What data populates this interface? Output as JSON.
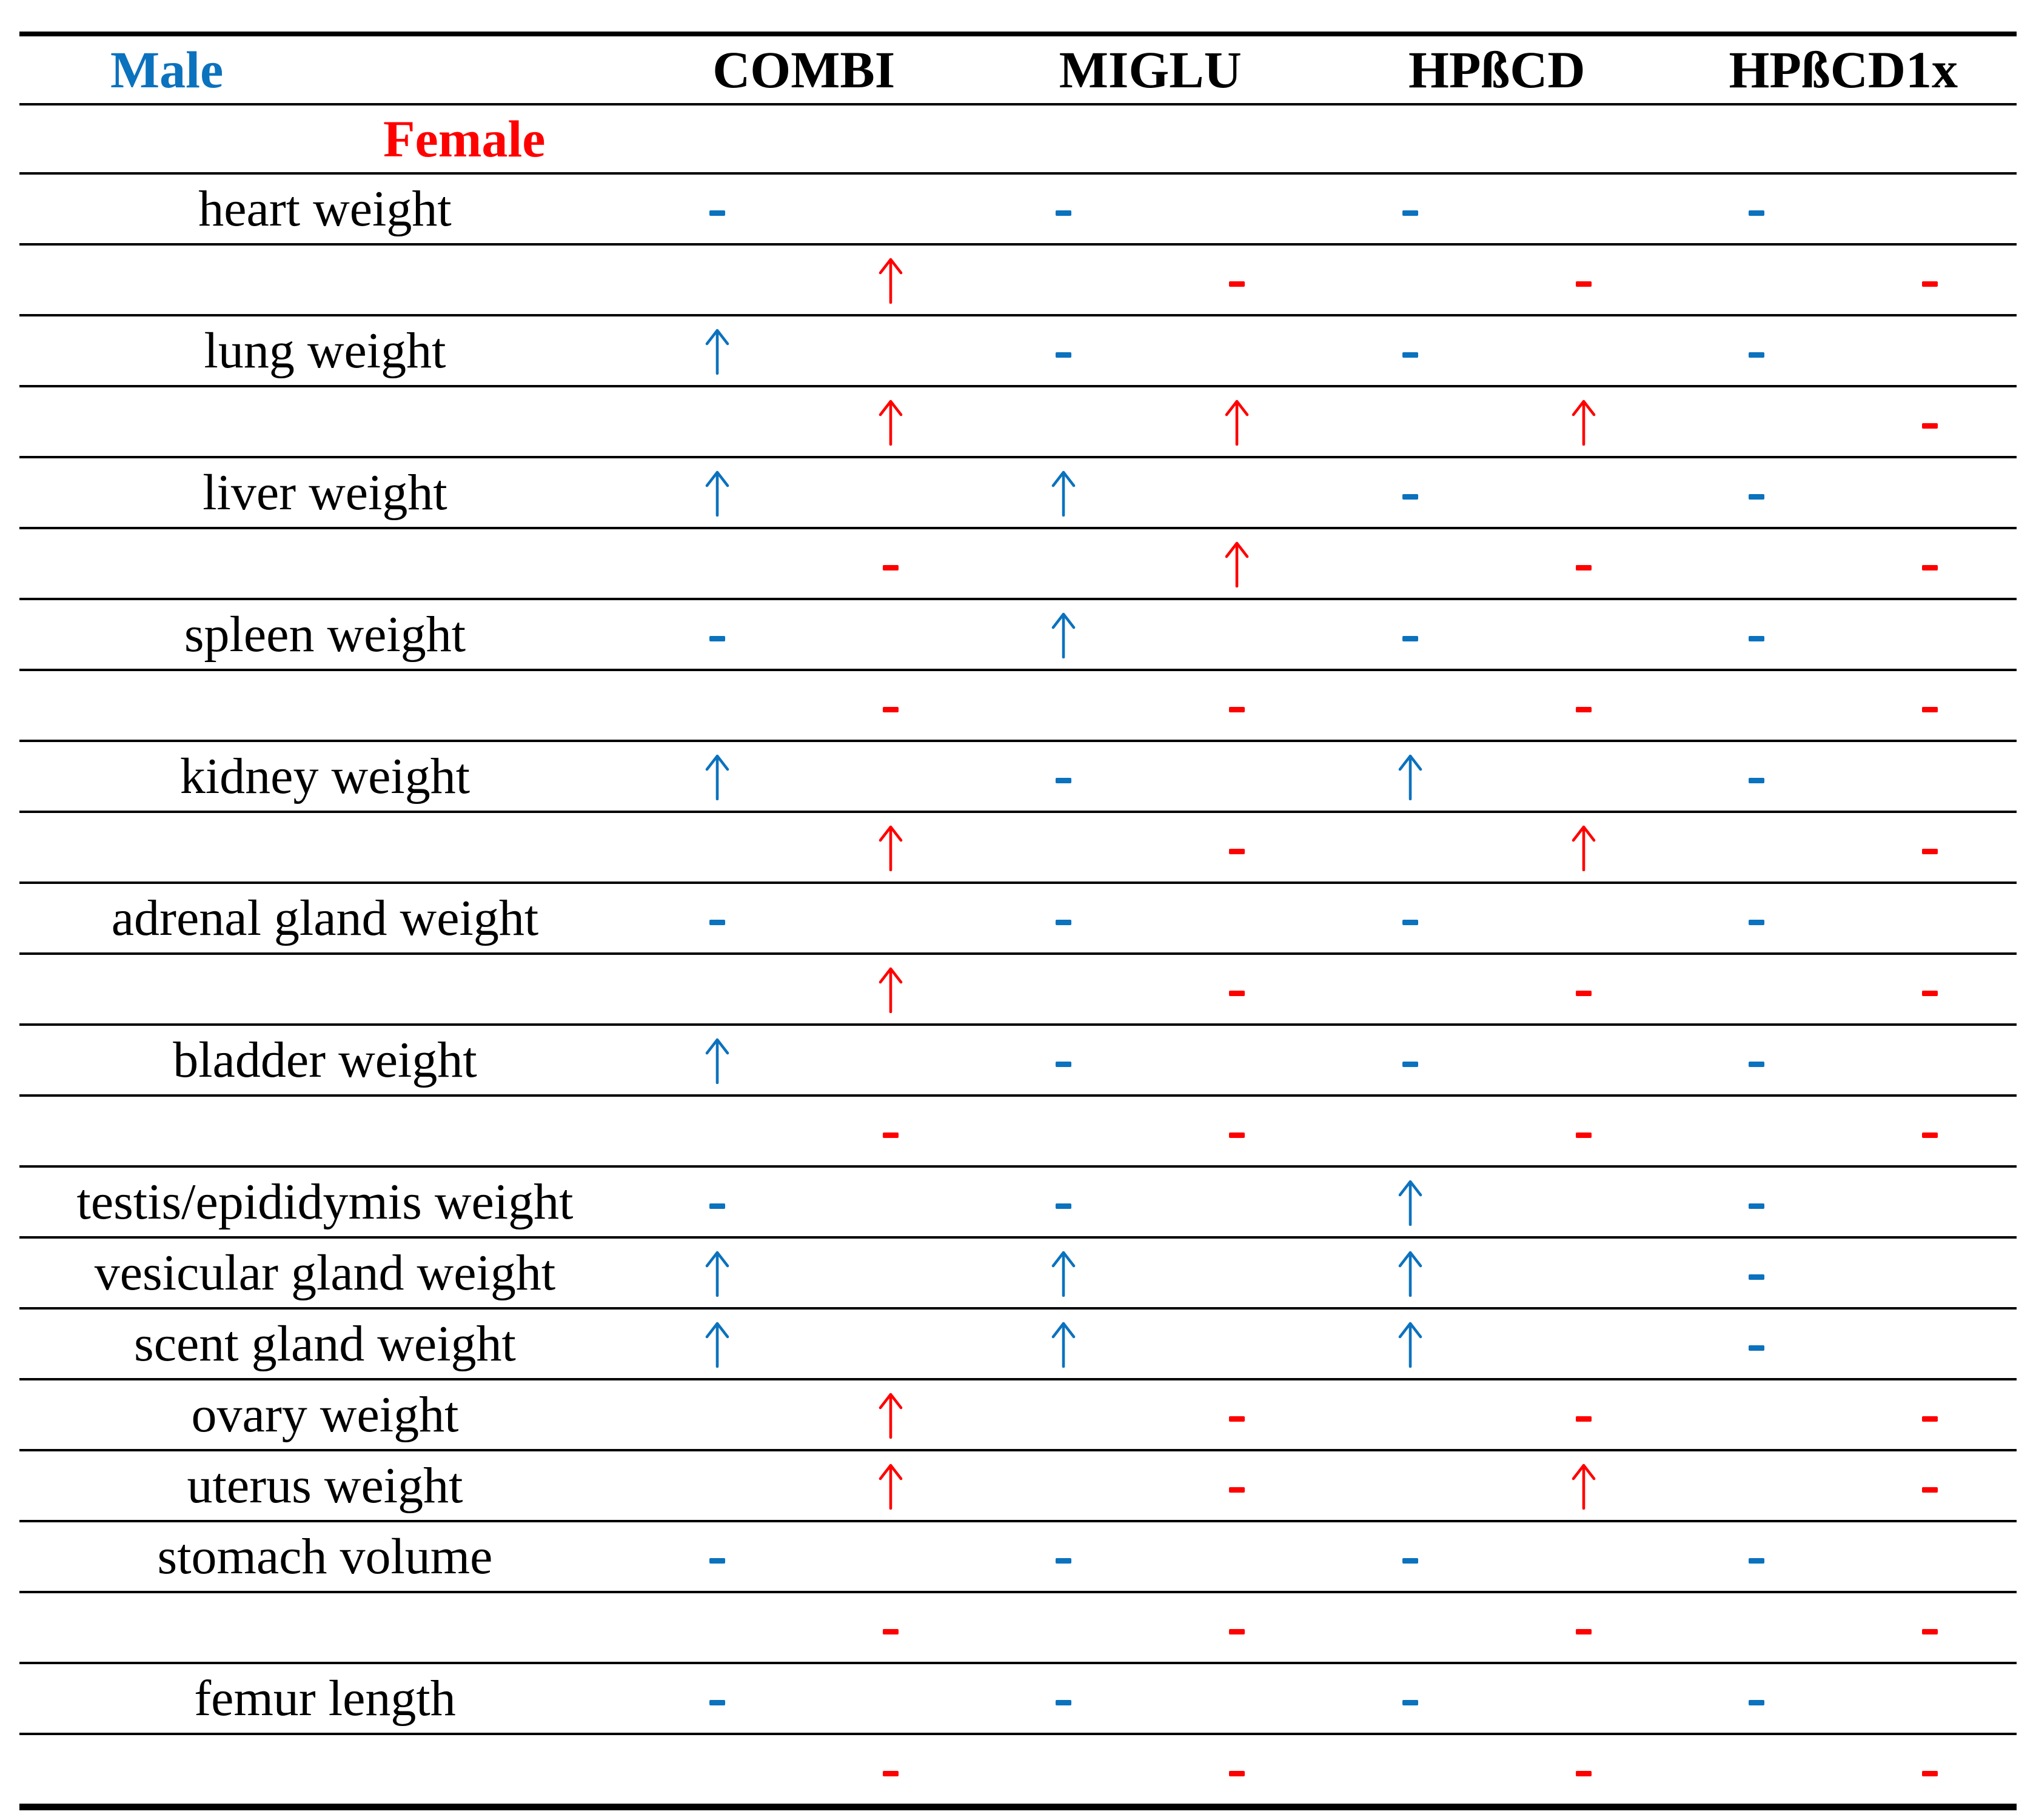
{
  "chart_data": {
    "type": "table",
    "columns": [
      "COMBI",
      "MIGLU",
      "HPßCD",
      "HPßCD1x"
    ],
    "sex_row_headers": {
      "male": "Male",
      "female": "Female"
    },
    "colors": {
      "male_blue": "#0B72BE",
      "female_red": "#FF0000"
    },
    "symbol_legend": {
      "up": "↑",
      "dash": "-"
    },
    "row_groups": [
      {
        "label": "heart weight",
        "male": [
          "-",
          "-",
          "-",
          "-"
        ],
        "female": [
          "↑",
          "-",
          "-",
          "-"
        ]
      },
      {
        "label": "lung weight",
        "male": [
          "↑",
          "-",
          "-",
          "-"
        ],
        "female": [
          "↑",
          "↑",
          "↑",
          "-"
        ]
      },
      {
        "label": "liver weight",
        "male": [
          "↑",
          "↑",
          "-",
          "-"
        ],
        "female": [
          "-",
          "↑",
          "-",
          "-"
        ]
      },
      {
        "label": "spleen weight",
        "male": [
          "-",
          "↑",
          "-",
          "-"
        ],
        "female": [
          "-",
          "-",
          "-",
          "-"
        ]
      },
      {
        "label": "kidney weight",
        "male": [
          "↑",
          "-",
          "↑",
          "-"
        ],
        "female": [
          "↑",
          "-",
          "↑",
          "-"
        ]
      },
      {
        "label": "adrenal gland weight",
        "male": [
          "-",
          "-",
          "-",
          "-"
        ],
        "female": [
          "↑",
          "-",
          "-",
          "-"
        ]
      },
      {
        "label": "bladder weight",
        "male": [
          "↑",
          "-",
          "-",
          "-"
        ],
        "female": [
          "-",
          "-",
          "-",
          "-"
        ]
      },
      {
        "label": "testis/epididymis weight",
        "male": [
          "-",
          "-",
          "↑",
          "-"
        ],
        "female": null
      },
      {
        "label": "vesicular gland weight",
        "male": [
          "↑",
          "↑",
          "↑",
          "-"
        ],
        "female": null
      },
      {
        "label": "scent gland weight",
        "male": [
          "↑",
          "↑",
          "↑",
          "-"
        ],
        "female": null
      },
      {
        "label": "ovary weight",
        "male": null,
        "female": [
          "↑",
          "-",
          "-",
          "-"
        ]
      },
      {
        "label": "uterus weight",
        "male": null,
        "female": [
          "↑",
          "-",
          "↑",
          "-"
        ]
      },
      {
        "label": "stomach volume",
        "male": [
          "-",
          "-",
          "-",
          "-"
        ],
        "female": [
          "-",
          "-",
          "-",
          "-"
        ]
      },
      {
        "label": "femur length",
        "male": [
          "-",
          "-",
          "-",
          "-"
        ],
        "female": [
          "-",
          "-",
          "-",
          "-"
        ]
      }
    ]
  }
}
